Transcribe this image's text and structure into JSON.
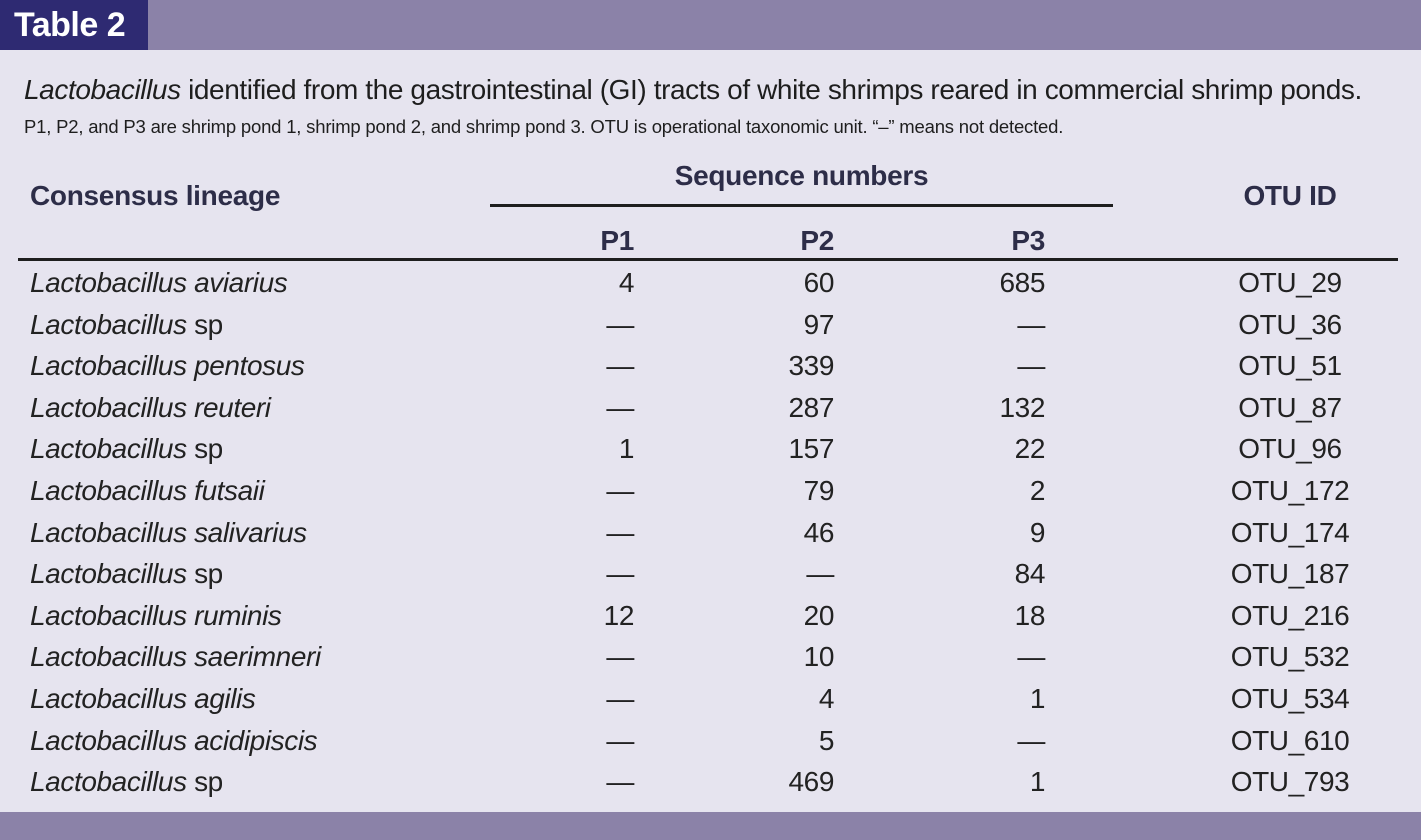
{
  "header": {
    "label": "Table 2"
  },
  "caption": {
    "genus": "Lactobacillus",
    "text": " identified from the gastrointestinal (GI) tracts of white shrimps reared in commercial shrimp ponds.",
    "note": "P1, P2, and P3 are shrimp pond 1, shrimp pond 2, and shrimp pond 3. OTU is operational taxonomic unit. “–” means not detected."
  },
  "columns": {
    "lineage": "Consensus lineage",
    "sequence_numbers": "Sequence numbers",
    "p1": "P1",
    "p2": "P2",
    "p3": "P3",
    "otu": "OTU ID"
  },
  "rows": [
    {
      "genus": "Lactobacillus",
      "species": " aviarius",
      "species_italic": true,
      "p1": "4",
      "p2": "60",
      "p3": "685",
      "otu": "OTU_29"
    },
    {
      "genus": "Lactobacillus",
      "species": " sp",
      "species_italic": false,
      "p1": "—",
      "p2": "97",
      "p3": "—",
      "otu": "OTU_36"
    },
    {
      "genus": "Lactobacillus",
      "species": " pentosus",
      "species_italic": true,
      "p1": "—",
      "p2": "339",
      "p3": "—",
      "otu": "OTU_51"
    },
    {
      "genus": "Lactobacillus",
      "species": " reuteri",
      "species_italic": true,
      "p1": "—",
      "p2": "287",
      "p3": "132",
      "otu": "OTU_87"
    },
    {
      "genus": "Lactobacillus",
      "species": " sp",
      "species_italic": false,
      "p1": "1",
      "p2": "157",
      "p3": "22",
      "otu": "OTU_96"
    },
    {
      "genus": "Lactobacillus",
      "species": " futsaii",
      "species_italic": true,
      "p1": "—",
      "p2": "79",
      "p3": "2",
      "otu": "OTU_172"
    },
    {
      "genus": "Lactobacillus",
      "species": " salivarius",
      "species_italic": true,
      "p1": "—",
      "p2": "46",
      "p3": "9",
      "otu": "OTU_174"
    },
    {
      "genus": "Lactobacillus",
      "species": " sp",
      "species_italic": false,
      "p1": "—",
      "p2": "—",
      "p3": "84",
      "otu": "OTU_187"
    },
    {
      "genus": "Lactobacillus",
      "species": " ruminis",
      "species_italic": true,
      "p1": "12",
      "p2": "20",
      "p3": "18",
      "otu": "OTU_216"
    },
    {
      "genus": "Lactobacillus",
      "species": " saerimneri",
      "species_italic": true,
      "p1": "—",
      "p2": "10",
      "p3": "—",
      "otu": "OTU_532"
    },
    {
      "genus": "Lactobacillus",
      "species": " agilis",
      "species_italic": true,
      "p1": "—",
      "p2": "4",
      "p3": "1",
      "otu": "OTU_534"
    },
    {
      "genus": "Lactobacillus",
      "species": " acidipiscis",
      "species_italic": true,
      "p1": "—",
      "p2": "5",
      "p3": "—",
      "otu": "OTU_610"
    },
    {
      "genus": "Lactobacillus",
      "species": " sp",
      "species_italic": false,
      "p1": "—",
      "p2": "469",
      "p3": "1",
      "otu": "OTU_793"
    }
  ],
  "colors": {
    "band": "#8b82a8",
    "label_bg": "#2e2a72",
    "page_bg": "#e6e4ef"
  }
}
